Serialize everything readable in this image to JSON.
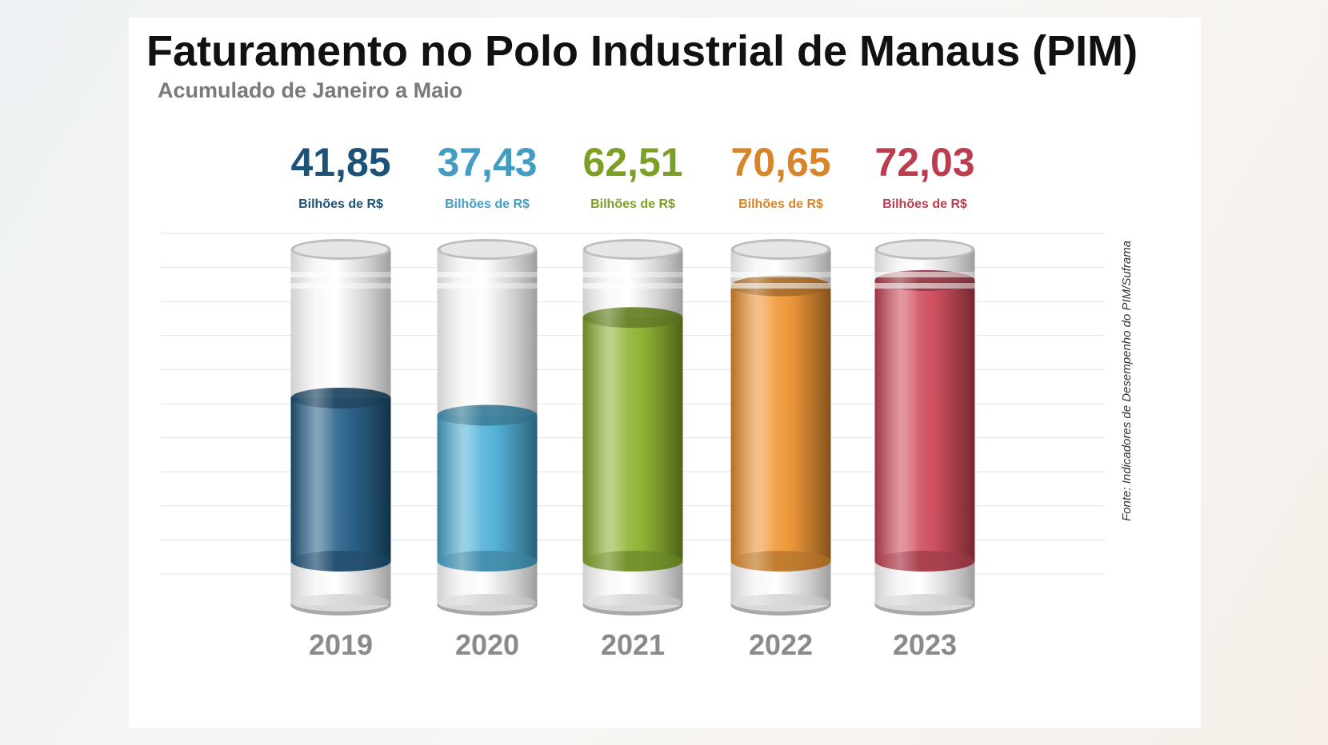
{
  "chart_data": {
    "type": "bar",
    "title": "Faturamento no Polo Industrial de Manaus (PIM)",
    "subtitle": "Acumulado de Janeiro a Maio",
    "categories": [
      "2019",
      "2020",
      "2021",
      "2022",
      "2023"
    ],
    "values": [
      41.85,
      37.43,
      62.51,
      70.65,
      72.03
    ],
    "value_labels": [
      "41,85",
      "37,43",
      "62,51",
      "70,65",
      "72,03"
    ],
    "unit_label": "Bilhões de R$",
    "colors": [
      "#1f5a85",
      "#4aaed8",
      "#8ab12a",
      "#f0932d",
      "#cf4556"
    ],
    "ylim": [
      0,
      80
    ],
    "grid": true,
    "legend": "none",
    "source": "Fonte: Indicadores de Desempenho do PIM/Suframa"
  }
}
